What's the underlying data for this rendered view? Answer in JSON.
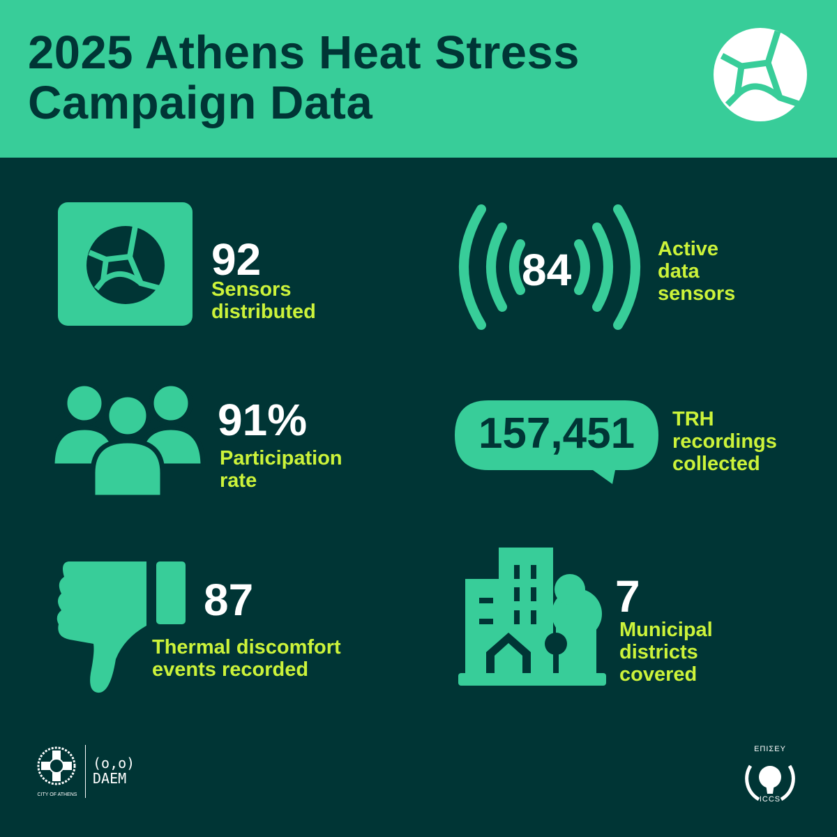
{
  "header": {
    "title_line1": "2025 Athens Heat Stress",
    "title_line2": "Campaign Data",
    "logo_icon": "cracked-circle-logo"
  },
  "colors": {
    "header_bg": "#38cd99",
    "page_bg": "#003535",
    "accent_green": "#38cd99",
    "label_lime": "#ccf33a",
    "number_white": "#ffffff",
    "title_dark": "#003535"
  },
  "stats": [
    {
      "value": "92",
      "label": [
        "Sensors",
        "distributed"
      ],
      "icon": "sensor-logo-icon"
    },
    {
      "value": "84",
      "label": [
        "Active",
        "data",
        "sensors"
      ],
      "icon": "signal-waves-icon"
    },
    {
      "value": "91%",
      "label": [
        "Participation",
        "rate"
      ],
      "icon": "people-group-icon"
    },
    {
      "value": "157,451",
      "label": [
        "TRH",
        "recordings",
        "collected"
      ],
      "icon": "speech-bubble-icon"
    },
    {
      "value": "87",
      "label": [
        "Thermal discomfort",
        "events recorded"
      ],
      "icon": "thumbs-down-icon"
    },
    {
      "value": "7",
      "label": [
        "Municipal",
        "districts",
        "covered"
      ],
      "icon": "city-buildings-icon"
    }
  ],
  "footer": {
    "city_logo_text": "CITY OF ATHENS",
    "daem_logo_symbol": "(o,o)",
    "daem_logo_text": "DAEM",
    "iccs_logo_top": "ΕΠΙΣΕΥ",
    "iccs_logo_bottom": "ICCS"
  }
}
